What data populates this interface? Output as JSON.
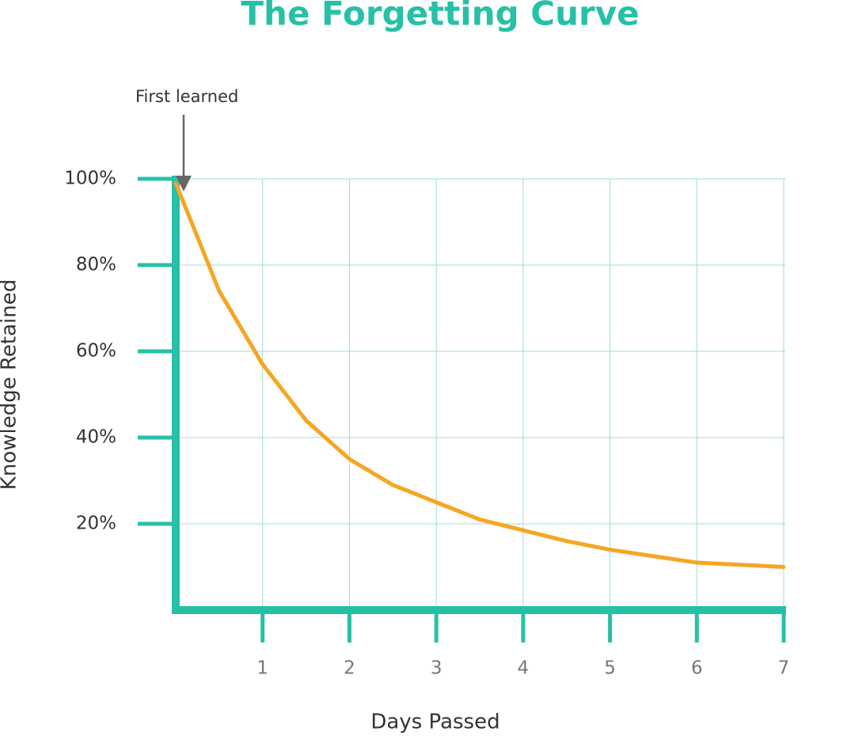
{
  "chart_data": {
    "type": "line",
    "title": "The Forgetting Curve",
    "x_label": "Days Passed",
    "y_label": "Knowledge Retained",
    "annotation": "First learned",
    "x": [
      0,
      0.5,
      1,
      1.5,
      2,
      2.5,
      3,
      3.5,
      4,
      4.5,
      5,
      5.5,
      6,
      6.5,
      7
    ],
    "series": [
      {
        "name": "Knowledge Retained",
        "color": "#f5a623",
        "values": [
          99,
          74,
          57,
          44,
          35,
          29,
          25,
          21,
          18.5,
          16,
          14,
          12.5,
          11,
          10.5,
          10
        ]
      }
    ],
    "xlim": [
      0,
      7
    ],
    "ylim": [
      0,
      100
    ],
    "xticks": [
      1,
      2,
      3,
      4,
      5,
      6,
      7
    ],
    "yticks": [
      {
        "value": 20,
        "label": "20%"
      },
      {
        "value": 40,
        "label": "40%"
      },
      {
        "value": 60,
        "label": "60%"
      },
      {
        "value": 80,
        "label": "80%"
      },
      {
        "value": 100,
        "label": "100%"
      }
    ],
    "grid": true,
    "axis_color": "#27c0a7",
    "grid_color": "#9fdcd2"
  }
}
